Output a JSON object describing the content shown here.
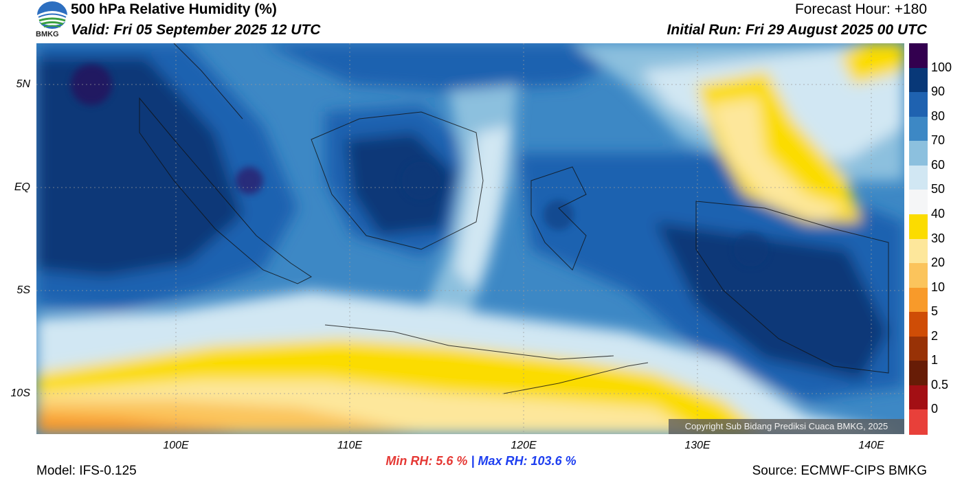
{
  "header": {
    "title": "500 hPa Relative Humidity (%)",
    "valid": "Valid: Fri 05 September 2025 12 UTC",
    "forecast_hour": "Forecast Hour: +180",
    "initial_run": "Initial Run: Fri 29 August 2025 00 UTC"
  },
  "logo": {
    "text": "BMKG",
    "icon": "bmkg-logo-icon"
  },
  "map": {
    "y_ticks": [
      "5N",
      "EQ",
      "5S",
      "10S"
    ],
    "x_ticks": [
      "100E",
      "110E",
      "120E",
      "130E",
      "140E"
    ],
    "copyright": "Copyright Sub Bidang Prediksi Cuaca BMKG, 2025",
    "gridlines": true
  },
  "colorbar": {
    "labels": [
      "100",
      "90",
      "80",
      "70",
      "60",
      "50",
      "40",
      "30",
      "20",
      "10",
      "5",
      "2",
      "1",
      "0.5",
      "0"
    ],
    "colors": [
      "#33004f",
      "#083878",
      "#1f62b0",
      "#3d88c5",
      "#8cc0de",
      "#d1e7f3",
      "#f5f6f7",
      "#fbdc00",
      "#fde79b",
      "#fbc45c",
      "#f89a2a",
      "#cf4d06",
      "#983206",
      "#671c06",
      "#a30f14",
      "#e8403a"
    ]
  },
  "stats": {
    "min_label": "Min RH:",
    "min_value": "5.6 %",
    "separator": "|",
    "max_label": "Max RH:",
    "max_value": "103.6 %"
  },
  "footer": {
    "model": "Model: IFS-0.125",
    "source": "Source: ECMWF-CIPS BMKG"
  }
}
